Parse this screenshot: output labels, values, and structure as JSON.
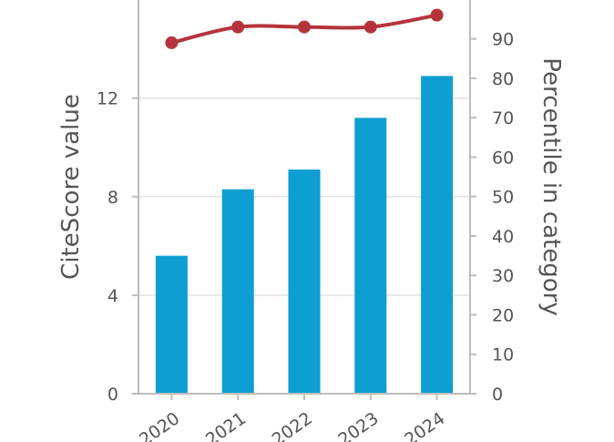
{
  "chart_data": {
    "type": "bar+line",
    "categories": [
      "2020",
      "2021",
      "2022",
      "2023",
      "2024"
    ],
    "series": [
      {
        "axis": "left",
        "kind": "bar",
        "color": "#0e9ed1",
        "values": [
          5.6,
          8.3,
          9.1,
          11.2,
          12.9
        ]
      },
      {
        "axis": "right",
        "kind": "line",
        "color": "#b5343c",
        "values": [
          89,
          93,
          93,
          93,
          96
        ]
      }
    ],
    "ylabel": "CiteScore value",
    "y2label": "Percentile in category",
    "yticks": [
      "0",
      "4",
      "8",
      "12"
    ],
    "y2ticks": [
      "0",
      "10",
      "20",
      "30",
      "40",
      "50",
      "60",
      "70",
      "80",
      "90"
    ],
    "ylim": [
      0,
      16.17
    ],
    "y2lim": [
      0,
      101
    ],
    "grid": true,
    "gridColor": "#e2e2e2",
    "axisColor": "#bdbdbd",
    "textColor": "#555555"
  }
}
